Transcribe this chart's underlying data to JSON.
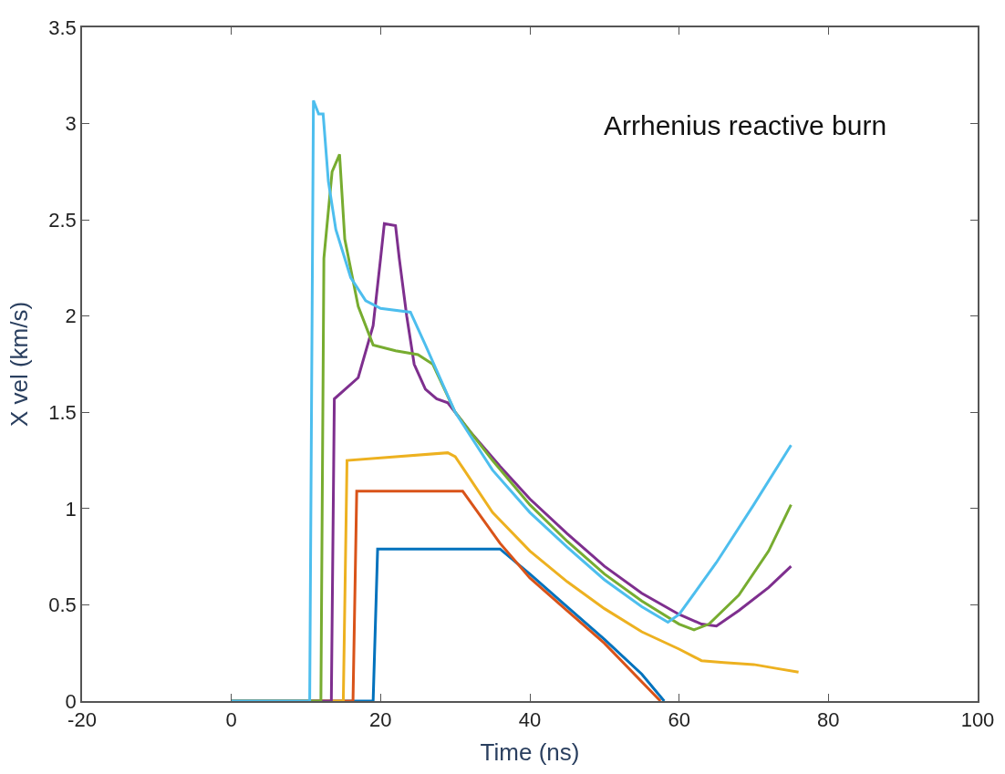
{
  "chart_data": {
    "type": "line",
    "xlabel": "Time (ns)",
    "ylabel": "X vel (km/s)",
    "annotations": [
      "Arrhenius reactive burn"
    ],
    "xlim": [
      -20,
      100
    ],
    "xticks": [
      -20,
      0,
      20,
      40,
      60,
      80,
      100
    ],
    "ylim": [
      0,
      3.5
    ],
    "yticks": [
      0,
      0.5,
      1,
      1.5,
      2,
      2.5,
      3,
      3.5
    ],
    "marker": "none",
    "line_style": "solid",
    "series": [
      {
        "color": "#0072bd",
        "x": [
          0,
          19,
          19.6,
          36,
          40,
          45,
          50,
          55,
          58
        ],
        "values": [
          0,
          0,
          0.79,
          0.79,
          0.66,
          0.49,
          0.32,
          0.14,
          0
        ]
      },
      {
        "color": "#d95319",
        "x": [
          0,
          16.3,
          16.8,
          31,
          36,
          40,
          45,
          50,
          57.5
        ],
        "values": [
          0,
          0,
          1.09,
          1.09,
          0.82,
          0.64,
          0.47,
          0.3,
          0
        ]
      },
      {
        "color": "#edb120",
        "x": [
          0,
          15,
          15.5,
          29,
          30,
          35,
          40,
          45,
          50,
          55,
          60,
          63,
          66,
          70,
          73,
          76
        ],
        "values": [
          0,
          0,
          1.25,
          1.29,
          1.27,
          0.98,
          0.78,
          0.62,
          0.48,
          0.36,
          0.27,
          0.21,
          0.2,
          0.19,
          0.17,
          0.15
        ]
      },
      {
        "color": "#7e2f8e",
        "x": [
          0,
          13.4,
          13.8,
          17,
          19,
          20,
          20.5,
          22,
          22.5,
          23.5,
          24.5,
          26,
          27.5,
          29,
          32,
          36,
          40,
          45,
          50,
          55,
          60,
          63,
          65,
          68,
          72,
          75
        ],
        "values": [
          0,
          0,
          1.57,
          1.68,
          1.95,
          2.3,
          2.48,
          2.47,
          2.3,
          2.0,
          1.75,
          1.62,
          1.57,
          1.55,
          1.4,
          1.22,
          1.05,
          0.87,
          0.7,
          0.56,
          0.45,
          0.4,
          0.39,
          0.47,
          0.59,
          0.7
        ]
      },
      {
        "color": "#77ac30",
        "x": [
          0,
          12,
          12.4,
          13.5,
          14.5,
          15.2,
          17,
          19,
          22,
          25,
          27,
          30,
          35,
          40,
          45,
          50,
          55,
          60,
          62,
          64,
          68,
          72,
          75
        ],
        "values": [
          0,
          0,
          2.3,
          2.75,
          2.84,
          2.4,
          2.05,
          1.85,
          1.82,
          1.8,
          1.75,
          1.5,
          1.25,
          1.02,
          0.83,
          0.66,
          0.52,
          0.4,
          0.37,
          0.4,
          0.55,
          0.78,
          1.02
        ]
      },
      {
        "color": "#4dbeee",
        "x": [
          0,
          10.5,
          11,
          11.7,
          12.3,
          13,
          14,
          16,
          18,
          20,
          24,
          26,
          30,
          35,
          40,
          45,
          50,
          55,
          58.5,
          60,
          65,
          70,
          75
        ],
        "values": [
          0,
          0,
          3.12,
          3.05,
          3.05,
          2.7,
          2.45,
          2.2,
          2.08,
          2.04,
          2.02,
          1.85,
          1.5,
          1.2,
          0.98,
          0.8,
          0.63,
          0.49,
          0.41,
          0.45,
          0.72,
          1.02,
          1.33
        ]
      }
    ]
  }
}
